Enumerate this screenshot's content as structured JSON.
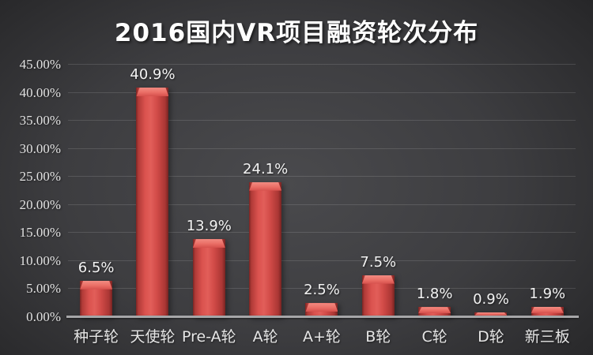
{
  "slide": {
    "title": "2016国内VR项目融资轮次分布"
  },
  "colors": {
    "background_center": "#4a4a4d",
    "background_edge": "#1c1c1e",
    "bar_main": "#d6504c",
    "bar_edge_dark": "#7a2523",
    "bar_cap_highlight": "#f28c82",
    "gridline": "rgba(255,255,255,0.13)",
    "axis_line": "#a6a6a8",
    "title_text": "#ffffff",
    "label_text": "#e6e6e6"
  },
  "chart_data": {
    "type": "bar",
    "title": "2016国内VR项目融资轮次分布",
    "categories": [
      "种子轮",
      "天使轮",
      "Pre-A轮",
      "A轮",
      "A+轮",
      "B轮",
      "C轮",
      "D轮",
      "新三板"
    ],
    "values": [
      6.5,
      40.9,
      13.9,
      24.1,
      2.5,
      7.5,
      1.8,
      0.9,
      1.9
    ],
    "data_labels": [
      "6.5%",
      "40.9%",
      "13.9%",
      "24.1%",
      "2.5%",
      "7.5%",
      "1.8%",
      "0.9%",
      "1.9%"
    ],
    "xlabel": "",
    "ylabel": "",
    "ylim": [
      0,
      45
    ],
    "ytick_step": 5,
    "ytick_labels": [
      "0.00%",
      "5.00%",
      "10.00%",
      "15.00%",
      "20.00%",
      "25.00%",
      "30.00%",
      "35.00%",
      "40.00%",
      "45.00%"
    ],
    "grid": true,
    "legend": "none",
    "bar_style": "3d-bevel"
  }
}
